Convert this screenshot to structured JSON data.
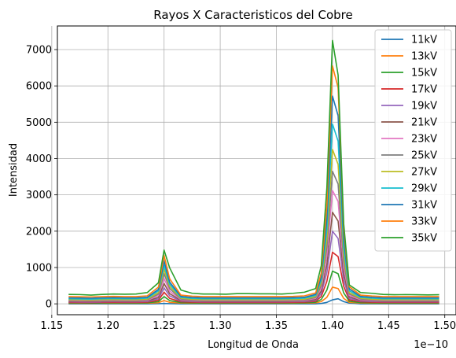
{
  "chart_data": {
    "type": "line",
    "title": "Rayos X Caracteristicos del Cobre",
    "xlabel": "Longitud de Onda",
    "ylabel": "Intensidad",
    "x_offset_label": "1e−10",
    "xlim": [
      1.155,
      1.51
    ],
    "ylim": [
      -300,
      7650
    ],
    "xticks": [
      "1.15",
      "1.20",
      "1.25",
      "1.30",
      "1.35",
      "1.40",
      "1.45",
      "1.50"
    ],
    "xtick_values": [
      1.15,
      1.2,
      1.25,
      1.3,
      1.35,
      1.4,
      1.45,
      1.5
    ],
    "yticks": [
      "0",
      "1000",
      "2000",
      "3000",
      "4000",
      "5000",
      "6000",
      "7000"
    ],
    "ytick_values": [
      0,
      1000,
      2000,
      3000,
      4000,
      5000,
      6000,
      7000
    ],
    "grid": true,
    "legend_position": "top-right",
    "x": [
      1.165,
      1.175,
      1.185,
      1.195,
      1.205,
      1.215,
      1.225,
      1.235,
      1.245,
      1.25,
      1.255,
      1.265,
      1.275,
      1.285,
      1.295,
      1.305,
      1.315,
      1.325,
      1.335,
      1.345,
      1.355,
      1.365,
      1.375,
      1.385,
      1.39,
      1.395,
      1.4,
      1.405,
      1.41,
      1.415,
      1.425,
      1.435,
      1.445,
      1.455,
      1.465,
      1.475,
      1.485,
      1.495
    ],
    "series": [
      {
        "name": "11kV",
        "color": "#1f77b4",
        "values": [
          0,
          0,
          0,
          0,
          0,
          0,
          0,
          0,
          5,
          10,
          5,
          0,
          0,
          0,
          0,
          0,
          0,
          0,
          0,
          0,
          0,
          0,
          0,
          0,
          10,
          40,
          110,
          140,
          60,
          20,
          0,
          0,
          0,
          0,
          0,
          0,
          0,
          0
        ]
      },
      {
        "name": "13kV",
        "color": "#ff7f0e",
        "values": [
          15,
          15,
          12,
          15,
          15,
          15,
          15,
          18,
          30,
          90,
          40,
          20,
          15,
          15,
          15,
          15,
          15,
          15,
          15,
          15,
          15,
          15,
          18,
          25,
          60,
          180,
          460,
          420,
          150,
          40,
          20,
          15,
          15,
          15,
          15,
          15,
          15,
          15
        ]
      },
      {
        "name": "15kV",
        "color": "#2ca02c",
        "values": [
          25,
          25,
          22,
          25,
          28,
          25,
          25,
          30,
          60,
          200,
          90,
          35,
          28,
          25,
          25,
          25,
          25,
          25,
          25,
          25,
          25,
          28,
          30,
          45,
          120,
          380,
          900,
          830,
          300,
          70,
          35,
          28,
          25,
          25,
          25,
          25,
          25,
          25
        ]
      },
      {
        "name": "17kV",
        "color": "#d62728",
        "values": [
          40,
          38,
          35,
          40,
          42,
          40,
          40,
          45,
          100,
          320,
          150,
          55,
          45,
          40,
          40,
          40,
          40,
          40,
          40,
          40,
          40,
          42,
          45,
          70,
          200,
          620,
          1420,
          1300,
          480,
          110,
          55,
          45,
          40,
          40,
          40,
          40,
          40,
          40
        ]
      },
      {
        "name": "19kV",
        "color": "#9467bd",
        "values": [
          55,
          52,
          50,
          55,
          58,
          55,
          55,
          62,
          140,
          440,
          220,
          75,
          60,
          55,
          55,
          55,
          55,
          55,
          55,
          55,
          55,
          58,
          62,
          95,
          280,
          860,
          2000,
          1800,
          650,
          150,
          75,
          60,
          55,
          55,
          55,
          55,
          55,
          55
        ]
      },
      {
        "name": "21kV",
        "color": "#8c564b",
        "values": [
          70,
          68,
          65,
          70,
          72,
          70,
          70,
          78,
          180,
          560,
          280,
          95,
          75,
          70,
          70,
          70,
          70,
          70,
          70,
          70,
          70,
          72,
          78,
          120,
          350,
          1080,
          2520,
          2280,
          820,
          190,
          95,
          78,
          70,
          70,
          70,
          70,
          70,
          70
        ]
      },
      {
        "name": "23kV",
        "color": "#e377c2",
        "values": [
          85,
          82,
          80,
          85,
          88,
          85,
          85,
          95,
          230,
          700,
          350,
          115,
          92,
          85,
          85,
          85,
          85,
          85,
          85,
          85,
          85,
          88,
          95,
          150,
          430,
          1330,
          3120,
          2820,
          1000,
          230,
          115,
          95,
          85,
          85,
          85,
          85,
          85,
          85
        ]
      },
      {
        "name": "25kV",
        "color": "#7f7f7f",
        "values": [
          100,
          98,
          95,
          100,
          105,
          100,
          100,
          112,
          270,
          830,
          420,
          135,
          108,
          100,
          100,
          100,
          100,
          100,
          100,
          100,
          100,
          105,
          112,
          175,
          510,
          1560,
          3650,
          3300,
          1170,
          270,
          135,
          112,
          100,
          100,
          100,
          100,
          100,
          100
        ]
      },
      {
        "name": "27kV",
        "color": "#bcbd22",
        "values": [
          115,
          112,
          110,
          115,
          120,
          115,
          115,
          128,
          310,
          950,
          480,
          155,
          125,
          115,
          115,
          115,
          115,
          115,
          115,
          115,
          115,
          120,
          128,
          200,
          580,
          1780,
          4250,
          3840,
          1350,
          310,
          155,
          128,
          115,
          115,
          115,
          115,
          115,
          115
        ]
      },
      {
        "name": "29kV",
        "color": "#17becf",
        "values": [
          140,
          135,
          130,
          140,
          145,
          140,
          140,
          155,
          360,
          1060,
          540,
          180,
          150,
          140,
          140,
          140,
          140,
          140,
          140,
          140,
          140,
          145,
          155,
          230,
          660,
          2050,
          4950,
          4480,
          1560,
          360,
          180,
          155,
          140,
          140,
          140,
          140,
          140,
          140
        ]
      },
      {
        "name": "31kV",
        "color": "#1f77b4",
        "values": [
          165,
          160,
          155,
          165,
          170,
          165,
          165,
          180,
          400,
          1180,
          600,
          205,
          175,
          165,
          165,
          165,
          165,
          165,
          165,
          165,
          165,
          170,
          180,
          260,
          740,
          2350,
          5720,
          5180,
          1800,
          410,
          205,
          180,
          165,
          165,
          165,
          165,
          165,
          165
        ]
      },
      {
        "name": "33kV",
        "color": "#ff7f0e",
        "values": [
          200,
          195,
          190,
          200,
          205,
          200,
          200,
          220,
          460,
          1330,
          690,
          240,
          210,
          200,
          200,
          200,
          200,
          200,
          200,
          200,
          200,
          205,
          220,
          300,
          850,
          2700,
          6550,
          5950,
          2050,
          470,
          240,
          215,
          200,
          200,
          200,
          200,
          200,
          200
        ]
      },
      {
        "name": "35kV",
        "color": "#2ca02c",
        "values": [
          260,
          255,
          240,
          260,
          270,
          265,
          270,
          310,
          580,
          1480,
          990,
          380,
          290,
          270,
          270,
          265,
          280,
          280,
          275,
          275,
          270,
          290,
          320,
          420,
          1050,
          3200,
          7250,
          6300,
          2200,
          520,
          310,
          290,
          260,
          250,
          255,
          250,
          245,
          250
        ]
      }
    ]
  }
}
